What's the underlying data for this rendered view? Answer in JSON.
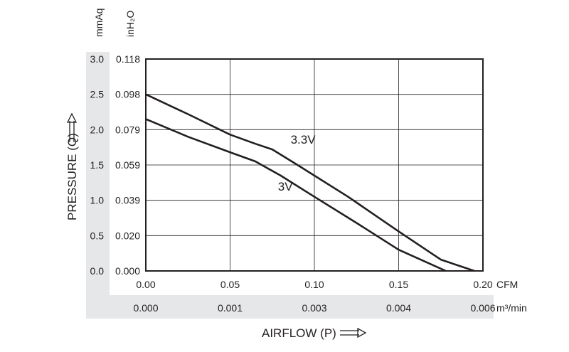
{
  "chart_data": {
    "type": "line",
    "xlabel": "AIRFLOW (P)",
    "ylabel": "PRESSURE (Q)",
    "x_unit_primary": "CFM",
    "x_unit_secondary": "m³/min",
    "y_unit_primary": "mmAq",
    "y_unit_secondary": "inH₂O",
    "xlim": [
      0,
      0.2
    ],
    "ylim": [
      0,
      3.0
    ],
    "grid": true,
    "x_ticks": [
      "0.00",
      "0.05",
      "0.10",
      "0.15",
      "0.20"
    ],
    "x_ticks_secondary": [
      "0.000",
      "0.001",
      "0.003",
      "0.004",
      "0.006"
    ],
    "y_ticks": [
      "0.0",
      "0.5",
      "1.0",
      "1.5",
      "2.0",
      "2.5",
      "3.0"
    ],
    "y_ticks_secondary": [
      "0.000",
      "0.020",
      "0.039",
      "0.059",
      "0.079",
      "0.098",
      "0.118"
    ],
    "series": [
      {
        "name": "3.3V",
        "x": [
          0,
          0.025,
          0.05,
          0.065,
          0.075,
          0.09,
          0.12,
          0.15,
          0.175,
          0.195
        ],
        "y": [
          2.5,
          2.22,
          1.93,
          1.8,
          1.72,
          1.5,
          1.05,
          0.56,
          0.16,
          0.0
        ]
      },
      {
        "name": "3V",
        "x": [
          0,
          0.025,
          0.05,
          0.065,
          0.08,
          0.1,
          0.125,
          0.15,
          0.178
        ],
        "y": [
          2.15,
          1.9,
          1.68,
          1.55,
          1.35,
          1.05,
          0.68,
          0.3,
          0.0
        ]
      }
    ]
  }
}
